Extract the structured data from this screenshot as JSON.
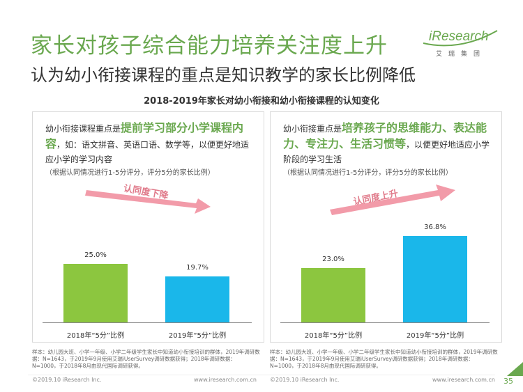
{
  "title": "家长对孩子综合能力培养关注度上升",
  "subtitle": "认为幼小衔接课程的重点是知识教学的家长比例降低",
  "logo": {
    "word": "iResearch",
    "sub": "艾瑞集团"
  },
  "section_title": "2018-2019年家长对幼小衔接和幼小衔接课程的认知变化",
  "panels": [
    {
      "desc_prefix": "幼小衔接课程重点是",
      "desc_highlight": "提前学习部分小学课程内容",
      "desc_suffix": "，如：语文拼音、英语口语、数学等，以便更好地适应小学的学习内容",
      "note": "（根据认同情况进行1-5分评分，评分5分的家长比例）",
      "trend_label": "认同度下降",
      "footnote": "样本：幼儿园大班、小学一年级、小学二年级学生家长中知道幼小衔接培训的群体，2019年调研数据：N=1643，于2019年9月使用艾瑞iUserSurvey调研数据获得；2018年调研数据：N=1000，于2018年8月由现代国际调研获得。"
    },
    {
      "desc_prefix": "幼小衔接重点是",
      "desc_highlight": "培养孩子的思维能力、表达能力、专注力、生活习惯等",
      "desc_suffix": "，以便更好地适应小学阶段的学习生活",
      "note": "（根据认同情况进行1-5分评分，评分5分的家长比例）",
      "trend_label": "认同度上升",
      "footnote": "样本：幼儿园大班、小学一年级、小学二年级学生家长中知道幼小衔接培训的群体，2019年调研数据：N=1643，于2019年9月使用艾瑞iUserSurvey调研数据获得；2018年调研数据：N=1000，于2018年8月由现代国际调研获得。"
    }
  ],
  "chart_data": [
    {
      "type": "bar",
      "categories": [
        "2018年“5分”比例",
        "2019年“5分”比例"
      ],
      "values": [
        25.0,
        19.7
      ],
      "value_labels": [
        "25.0%",
        "19.7%"
      ],
      "colors": [
        "#8cc63f",
        "#1ab7ea"
      ],
      "ylim": [
        0,
        40
      ]
    },
    {
      "type": "bar",
      "categories": [
        "2018年“5分”比例",
        "2019年“5分”比例"
      ],
      "values": [
        23.0,
        36.8
      ],
      "value_labels": [
        "23.0%",
        "36.8%"
      ],
      "colors": [
        "#8cc63f",
        "#1ab7ea"
      ],
      "ylim": [
        0,
        40
      ]
    }
  ],
  "footer": {
    "copyright_left": "©2019.10 iResearch Inc.",
    "url_left": "www.iresearch.com.cn",
    "copyright_right": "©2019.10 iResearch Inc.",
    "url_right": "www.iresearch.com.cn",
    "page": "35"
  }
}
